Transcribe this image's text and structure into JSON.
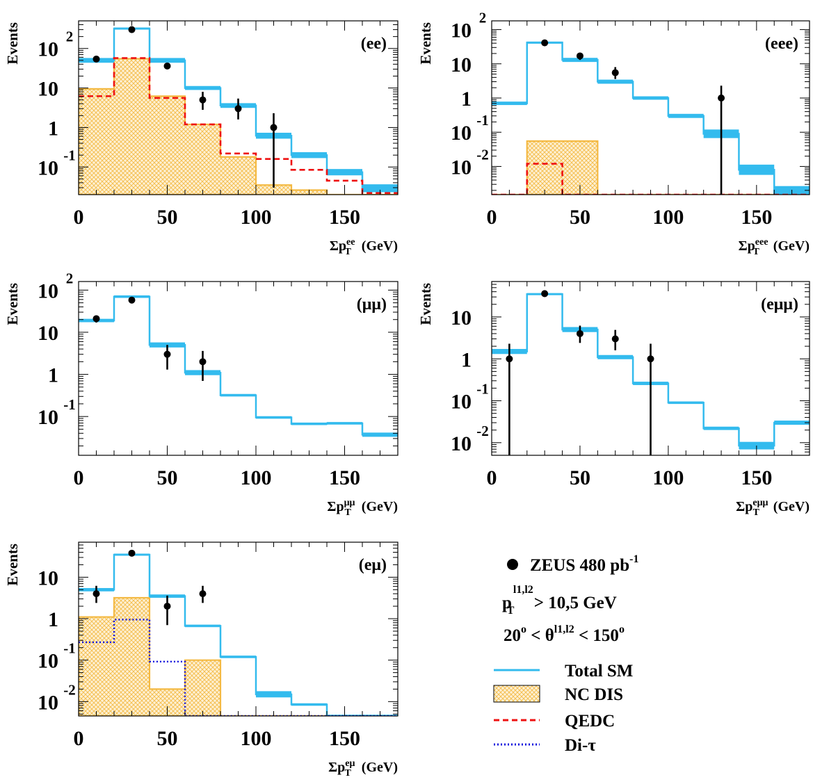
{
  "legend": {
    "items": [
      {
        "label": "ZEUS 480 pb",
        "sup": "-1",
        "style": "data"
      },
      {
        "label": "Total SM",
        "style": "sm",
        "color": "#33bbee"
      },
      {
        "label": "NC DIS",
        "style": "ncdis",
        "color": "#f4b942"
      },
      {
        "label": "QEDC",
        "style": "qedc",
        "color": "#ee1111"
      },
      {
        "label": "Di-τ",
        "style": "ditau",
        "color": "#1111dd"
      }
    ],
    "cut1": {
      "p": "p",
      "sub": "T",
      "sup": "l1,l2",
      "text": " > 10,5 GeV"
    },
    "cut2": {
      "pre": "20",
      "deg": "o",
      "mid": " < θ",
      "sup": "l1,l2",
      "post": " < 150",
      "deg2": "o"
    }
  },
  "chart_data": [
    {
      "type": "histogram",
      "tag": "(ee)",
      "ylabel": "Events",
      "xlabel": {
        "main": "Σp",
        "sub": "T",
        "sup": "ee",
        "unit": "(GeV)"
      },
      "xlim": [
        0,
        180
      ],
      "ylim": [
        0.02,
        500
      ],
      "yscale": "log",
      "xticks": [
        "0",
        "50",
        "100",
        "150"
      ],
      "yticks": [
        {
          "v": 100,
          "base": "10",
          "exp": "2"
        },
        {
          "v": 10,
          "base": "10",
          "exp": ""
        },
        {
          "v": 1,
          "base": "1",
          "exp": ""
        },
        {
          "v": 0.1,
          "base": "10",
          "exp": "-1"
        }
      ],
      "edges": [
        0,
        20,
        40,
        60,
        80,
        100,
        120,
        140,
        160,
        180
      ],
      "sm": [
        50,
        320,
        50,
        10,
        3.6,
        0.62,
        0.2,
        0.074,
        0.029
      ],
      "sm_err": [
        0.12,
        0.05,
        0.12,
        0.1,
        0.12,
        0.15,
        0.15,
        0.16,
        0.2
      ],
      "ncdis": [
        9.5,
        55,
        6.2,
        1.2,
        0.18,
        0.035,
        0.026,
        0.012,
        0.001
      ],
      "qedc": [
        6.2,
        57,
        5.6,
        1.2,
        0.22,
        0.16,
        0.085,
        0.045,
        0.022
      ],
      "data": [
        {
          "x": 10,
          "y": 54
        },
        {
          "x": 30,
          "y": 300,
          "up": 30,
          "dn": 30
        },
        {
          "x": 50,
          "y": 36
        },
        {
          "x": 70,
          "y": 5,
          "up": 3,
          "dn": 2.2
        },
        {
          "x": 90,
          "y": 3,
          "up": 2.4,
          "dn": 1.4
        },
        {
          "x": 110,
          "y": 1,
          "up": 1.3,
          "dn": 0.97
        }
      ]
    },
    {
      "type": "histogram",
      "tag": "(eee)",
      "ylabel": "Events",
      "xlabel": {
        "main": "Σp",
        "sub": "T",
        "sup": "eee",
        "unit": "(GeV)"
      },
      "xlim": [
        0,
        180
      ],
      "ylim": [
        0.0015,
        180
      ],
      "yscale": "log",
      "xticks": [
        "0",
        "50",
        "100",
        "150"
      ],
      "yticks": [
        {
          "v": 100,
          "base": "10",
          "exp": "2"
        },
        {
          "v": 10,
          "base": "10",
          "exp": ""
        },
        {
          "v": 1,
          "base": "1",
          "exp": ""
        },
        {
          "v": 0.1,
          "base": "10",
          "exp": "-1"
        },
        {
          "v": 0.01,
          "base": "10",
          "exp": "-2"
        }
      ],
      "edges": [
        0,
        20,
        40,
        60,
        80,
        100,
        120,
        140,
        160,
        180
      ],
      "sm": [
        0.7,
        42,
        13,
        3,
        1,
        0.3,
        0.09,
        0.008,
        0.0015
      ],
      "sm_err": [
        0.1,
        0.05,
        0.12,
        0.12,
        0.1,
        0.12,
        0.25,
        0.3,
        0.5
      ],
      "ncdis": [
        0.001,
        0.055,
        0.055,
        0.001,
        0.001,
        0.001,
        0.001,
        0.001,
        0.001
      ],
      "qedc": [
        0.001,
        0.012,
        0.001,
        0.001,
        0.001,
        0.001,
        0.001,
        0.001,
        0.001
      ],
      "data": [
        {
          "x": 30,
          "y": 41,
          "up": 7,
          "dn": 6
        },
        {
          "x": 50,
          "y": 17,
          "up": 4,
          "dn": 4
        },
        {
          "x": 70,
          "y": 5.5,
          "up": 2.5,
          "dn": 1.9
        },
        {
          "x": 130,
          "y": 1,
          "up": 1.3,
          "dn": 0.999
        }
      ]
    },
    {
      "type": "histogram",
      "tag": "(μμ)",
      "ylabel": "Events",
      "xlabel": {
        "main": "Σp",
        "sub": "T",
        "sup": "μμ",
        "unit": "(GeV)"
      },
      "xlim": [
        0,
        180
      ],
      "ylim": [
        0.012,
        160
      ],
      "yscale": "log",
      "xticks": [
        "0",
        "50",
        "100",
        "150"
      ],
      "yticks": [
        {
          "v": 100,
          "base": "10",
          "exp": "2"
        },
        {
          "v": 10,
          "base": "10",
          "exp": ""
        },
        {
          "v": 1,
          "base": "1",
          "exp": ""
        },
        {
          "v": 0.1,
          "base": "10",
          "exp": "-1"
        }
      ],
      "edges": [
        0,
        20,
        40,
        60,
        80,
        100,
        120,
        140,
        160,
        180
      ],
      "sm": [
        19,
        70,
        5,
        1.1,
        0.32,
        0.095,
        0.067,
        0.069,
        0.037
      ],
      "sm_err": [
        0.08,
        0.06,
        0.12,
        0.12,
        0.06,
        0.06,
        0.06,
        0.06,
        0.1
      ],
      "data": [
        {
          "x": 10,
          "y": 21,
          "up": 4,
          "dn": 4
        },
        {
          "x": 30,
          "y": 58,
          "up": 6,
          "dn": 6
        },
        {
          "x": 50,
          "y": 3,
          "up": 2,
          "dn": 1.7
        },
        {
          "x": 70,
          "y": 2,
          "up": 1.6,
          "dn": 1.3
        }
      ]
    },
    {
      "type": "histogram",
      "tag": "(eμμ)",
      "ylabel": "Events",
      "xlabel": {
        "main": "Σp",
        "sub": "T",
        "sup": "eμμ",
        "unit": "(GeV)"
      },
      "xlim": [
        0,
        180
      ],
      "ylim": [
        0.005,
        70
      ],
      "yscale": "log",
      "xticks": [
        "0",
        "50",
        "100",
        "150"
      ],
      "yticks": [
        {
          "v": 10,
          "base": "10",
          "exp": ""
        },
        {
          "v": 1,
          "base": "1",
          "exp": ""
        },
        {
          "v": 0.1,
          "base": "10",
          "exp": "-1"
        },
        {
          "v": 0.01,
          "base": "10",
          "exp": "-2"
        }
      ],
      "edges": [
        0,
        20,
        40,
        60,
        80,
        100,
        120,
        140,
        160,
        180
      ],
      "sm": [
        1.5,
        35,
        5,
        1.1,
        0.26,
        0.09,
        0.022,
        0.0085,
        0.03
      ],
      "sm_err": [
        0.12,
        0.05,
        0.12,
        0.1,
        0.08,
        0.06,
        0.08,
        0.18,
        0.1
      ],
      "data": [
        {
          "x": 10,
          "y": 1,
          "up": 1.3,
          "dn": 0.999
        },
        {
          "x": 30,
          "y": 36,
          "up": 6,
          "dn": 6
        },
        {
          "x": 50,
          "y": 4,
          "up": 2.2,
          "dn": 1.6
        },
        {
          "x": 70,
          "y": 3,
          "up": 1.9,
          "dn": 1.4
        },
        {
          "x": 90,
          "y": 1,
          "up": 1.3,
          "dn": 0.999
        }
      ]
    },
    {
      "type": "histogram",
      "tag": "(eμ)",
      "ylabel": "Events",
      "xlabel": {
        "main": "Σp",
        "sub": "T",
        "sup": "eμ",
        "unit": "(GeV)"
      },
      "xlim": [
        0,
        180
      ],
      "ylim": [
        0.0045,
        70
      ],
      "yscale": "log",
      "xticks": [
        "0",
        "50",
        "100",
        "150"
      ],
      "yticks": [
        {
          "v": 10,
          "base": "10",
          "exp": ""
        },
        {
          "v": 1,
          "base": "1",
          "exp": ""
        },
        {
          "v": 0.1,
          "base": "10",
          "exp": "-1"
        },
        {
          "v": 0.01,
          "base": "10",
          "exp": "-2"
        }
      ],
      "edges": [
        0,
        20,
        40,
        60,
        80,
        100,
        120,
        140,
        160,
        180
      ],
      "sm": [
        5,
        35,
        3.5,
        0.67,
        0.12,
        0.015,
        0.0085,
        0.0045,
        0.0045
      ],
      "sm_err": [
        0.08,
        0.05,
        0.08,
        0.06,
        0.06,
        0.15,
        0.06,
        0.06,
        0.06
      ],
      "ncdis": [
        1.1,
        3.2,
        0.02,
        0.1,
        0.001,
        0.001,
        0.001,
        0.001,
        0.001
      ],
      "ditau": [
        0.27,
        0.95,
        0.092,
        0.001,
        0.001,
        0.001,
        0.001,
        0.001,
        0.001
      ],
      "data": [
        {
          "x": 10,
          "y": 4,
          "up": 2.2,
          "dn": 1.6
        },
        {
          "x": 30,
          "y": 38,
          "up": 6,
          "dn": 6
        },
        {
          "x": 50,
          "y": 2,
          "up": 1.6,
          "dn": 1.3
        },
        {
          "x": 70,
          "y": 4,
          "up": 2.2,
          "dn": 1.6
        }
      ]
    }
  ]
}
